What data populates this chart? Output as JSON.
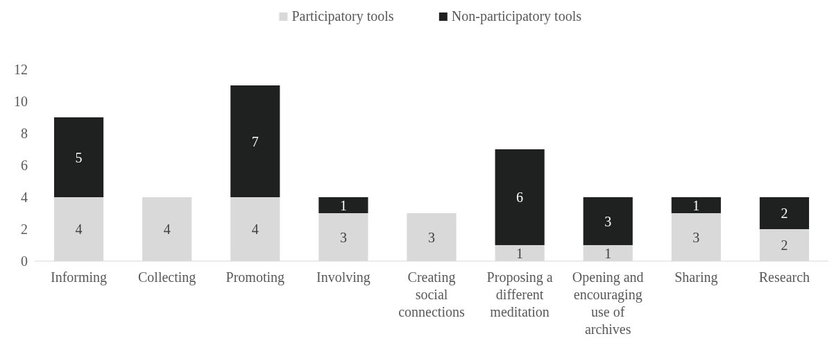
{
  "chart_data": {
    "type": "bar",
    "stacked": true,
    "categories": [
      "Informing",
      "Collecting",
      "Promoting",
      "Involving",
      "Creating social connections",
      "Proposing a different meditation",
      "Opening and encouraging use of archives",
      "Sharing",
      "Research"
    ],
    "series": [
      {
        "name": "Participatory tools",
        "color": "#d9d9d9",
        "values": [
          4,
          4,
          4,
          3,
          3,
          1,
          1,
          3,
          2
        ]
      },
      {
        "name": "Non-participatory tools",
        "color": "#1f2120",
        "values": [
          5,
          null,
          7,
          1,
          null,
          6,
          3,
          1,
          2
        ]
      }
    ],
    "ylim": [
      0,
      12
    ],
    "yticks": [
      0,
      2,
      4,
      6,
      8,
      10,
      12
    ],
    "grid": false,
    "legend": "top",
    "data_labels": true
  }
}
